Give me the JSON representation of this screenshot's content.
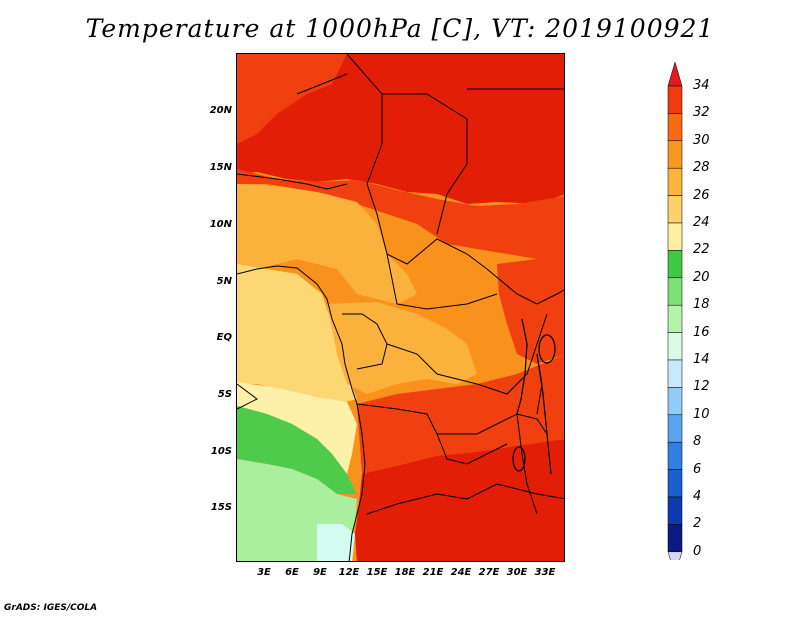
{
  "title": "Temperature at 1000hPa [C], VT: 2019100921",
  "credit": "GrADS: IGES/COLA",
  "lat_labels": [
    "20N",
    "15N",
    "10N",
    "5N",
    "EQ",
    "5S",
    "10S",
    "15S"
  ],
  "lat_values": [
    20,
    15,
    10,
    5,
    0,
    -5,
    -10,
    -15
  ],
  "lon_labels": [
    "3E",
    "6E",
    "9E",
    "12E",
    "15E",
    "18E",
    "21E",
    "24E",
    "27E",
    "30E",
    "33E"
  ],
  "lon_values": [
    3,
    6,
    9,
    12,
    15,
    18,
    21,
    24,
    27,
    30,
    33
  ],
  "extent": {
    "lon_min": 0,
    "lon_max": 35,
    "lat_min": -19.5,
    "lat_max": 25
  },
  "colorbar": {
    "labels": [
      "34",
      "32",
      "30",
      "28",
      "26",
      "24",
      "22",
      "20",
      "18",
      "16",
      "14",
      "12",
      "10",
      "8",
      "6",
      "4",
      "2",
      "0"
    ],
    "colors": [
      "#e41a1c",
      "#f03a10",
      "#f76a10",
      "#f8981e",
      "#f9b53c",
      "#fcd06a",
      "#fdf0a0",
      "#3ec843",
      "#7ee076",
      "#b6f2ab",
      "#dcfbe6",
      "#c8e8fb",
      "#93cdf7",
      "#5aa5ef",
      "#2f80e0",
      "#1a5fd0",
      "#0d3aae",
      "#0a1a82"
    ],
    "under_color": "#d6d6f0"
  },
  "colors": {
    "red": "#e21e07",
    "red_orange": "#f04010",
    "orange": "#f9921c",
    "light_orange": "#fbb23c",
    "yellow": "#fdd774",
    "pale": "#fdf0a8",
    "green": "#4ecb4a",
    "light_green": "#a9ef9e",
    "cyan": "#d4fbf0"
  }
}
